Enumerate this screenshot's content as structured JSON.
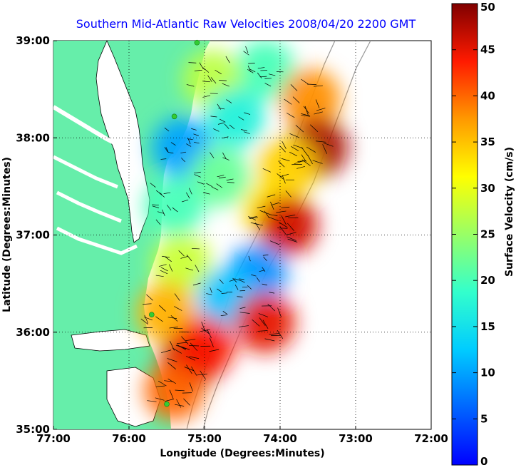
{
  "chart_data": {
    "type": "heatmap",
    "title": "Southern Mid-Atlantic Raw Velocities 2008/04/20 2200 GMT",
    "xlabel": "Longitude (Degrees:Minutes)",
    "ylabel": "Latitude (Degrees:Minutes)",
    "xlim": [
      -77,
      -72
    ],
    "ylim": [
      35,
      39
    ],
    "x_ticks": [
      {
        "value": -77,
        "label": "77:00"
      },
      {
        "value": -76,
        "label": "76:00"
      },
      {
        "value": -75,
        "label": "75:00"
      },
      {
        "value": -74,
        "label": "74:00"
      },
      {
        "value": -73,
        "label": "73:00"
      },
      {
        "value": -72,
        "label": "72:00"
      }
    ],
    "y_ticks": [
      {
        "value": 35,
        "label": "35:00"
      },
      {
        "value": 36,
        "label": "36:00"
      },
      {
        "value": 37,
        "label": "37:00"
      },
      {
        "value": 38,
        "label": "38:00"
      },
      {
        "value": 39,
        "label": "39:00"
      }
    ],
    "grid": true,
    "colorbar": {
      "label": "Surface Velocity (cm/s)",
      "min": 0,
      "max": 50,
      "ticks": [
        0,
        5,
        10,
        15,
        20,
        25,
        30,
        35,
        40,
        45,
        50
      ],
      "colormap": "jet"
    },
    "colors": {
      "land": "#66eeaa",
      "coastline": "#000000",
      "bathymetry": "#999999",
      "stations": "#33cc33",
      "vectors": "#000000"
    },
    "stations": [
      {
        "lon": -75.1,
        "lat": 38.98
      },
      {
        "lon": -75.4,
        "lat": 38.22
      },
      {
        "lon": -75.7,
        "lat": 36.18
      },
      {
        "lon": -75.5,
        "lat": 35.26
      }
    ],
    "velocity_regions": [
      {
        "lon": -74.2,
        "lat": 38.7,
        "speed": 20
      },
      {
        "lon": -74.9,
        "lat": 38.6,
        "speed": 27
      },
      {
        "lon": -73.6,
        "lat": 38.4,
        "speed": 38
      },
      {
        "lon": -73.5,
        "lat": 37.9,
        "speed": 48
      },
      {
        "lon": -73.9,
        "lat": 37.7,
        "speed": 34
      },
      {
        "lon": -74.6,
        "lat": 38.2,
        "speed": 17
      },
      {
        "lon": -75.3,
        "lat": 37.9,
        "speed": 10
      },
      {
        "lon": -74.8,
        "lat": 37.6,
        "speed": 22
      },
      {
        "lon": -74.1,
        "lat": 37.25,
        "speed": 33
      },
      {
        "lon": -73.9,
        "lat": 37.1,
        "speed": 46
      },
      {
        "lon": -75.4,
        "lat": 37.3,
        "speed": 20
      },
      {
        "lon": -75.3,
        "lat": 36.7,
        "speed": 28
      },
      {
        "lon": -74.3,
        "lat": 36.6,
        "speed": 9
      },
      {
        "lon": -74.7,
        "lat": 36.35,
        "speed": 12
      },
      {
        "lon": -75.5,
        "lat": 36.2,
        "speed": 36
      },
      {
        "lon": -74.2,
        "lat": 36.1,
        "speed": 45
      },
      {
        "lon": -75.2,
        "lat": 35.7,
        "speed": 48
      },
      {
        "lon": -75.4,
        "lat": 35.4,
        "speed": 40
      },
      {
        "lon": -75.0,
        "lat": 35.85,
        "speed": 44
      }
    ]
  }
}
